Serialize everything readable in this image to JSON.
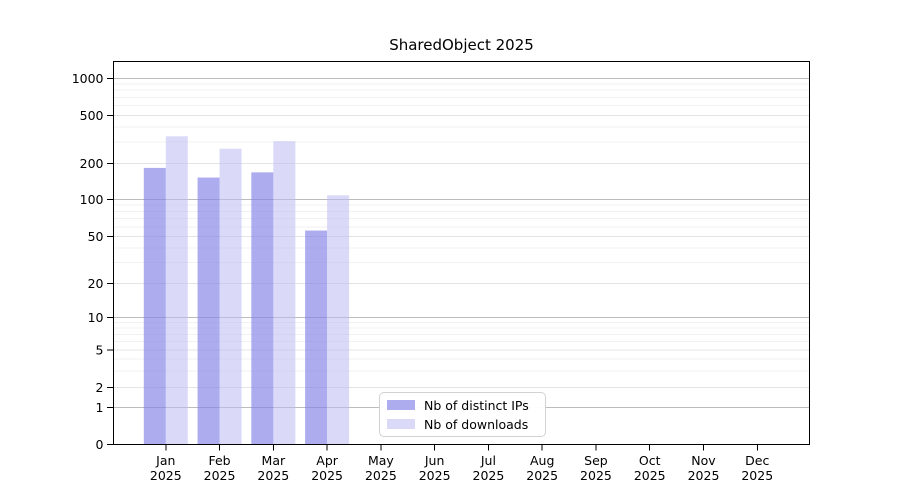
{
  "title": "SharedObject 2025",
  "chart_data": {
    "type": "bar",
    "title": "SharedObject 2025",
    "categories": [
      "Jan",
      "Feb",
      "Mar",
      "Apr",
      "May",
      "Jun",
      "Jul",
      "Aug",
      "Sep",
      "Oct",
      "Nov",
      "Dec"
    ],
    "category_year": "2025",
    "series": [
      {
        "name": "Nb of distinct IPs",
        "color": "#8585e8",
        "opacity": 0.68,
        "values": [
          183,
          152,
          168,
          56,
          null,
          null,
          null,
          null,
          null,
          null,
          null,
          null
        ]
      },
      {
        "name": "Nb of downloads",
        "color": "#bcbcf2",
        "opacity": 0.55,
        "values": [
          335,
          264,
          305,
          108,
          null,
          null,
          null,
          null,
          null,
          null,
          null,
          null
        ]
      }
    ],
    "yscale": "log-with-zero-baseline",
    "ylim": [
      0,
      1000
    ],
    "yticks": [
      0,
      1,
      2,
      5,
      10,
      20,
      50,
      100,
      200,
      500,
      1000
    ],
    "minor_ticks": [
      3,
      4,
      6,
      7,
      8,
      9,
      30,
      40,
      60,
      70,
      80,
      90,
      300,
      400,
      600,
      700,
      800,
      900
    ],
    "grid": "horizontal",
    "legend_position": "lower-center-inside"
  },
  "legend": {
    "items": [
      {
        "label": "Nb of distinct IPs"
      },
      {
        "label": "Nb of downloads"
      }
    ]
  },
  "colors": {
    "background": "#ffffff",
    "text": "#000000",
    "axis": "#000000",
    "grid_power10": "#bcbcbc",
    "grid_major": "#e4e4e4",
    "grid_minor": "#f1f1f1"
  }
}
